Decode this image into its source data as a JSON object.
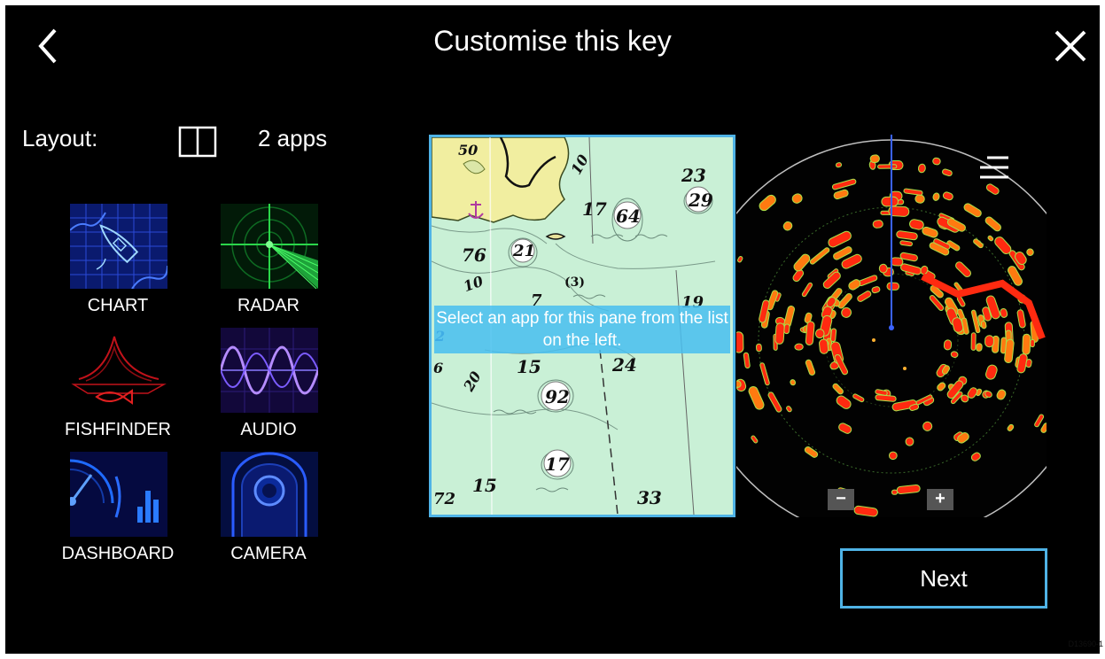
{
  "header": {
    "title": "Customise this key",
    "back_icon": "chevron-left-icon",
    "close_icon": "close-icon"
  },
  "layout": {
    "label": "Layout:",
    "icon": "split-two-pane-icon",
    "count_label": "2 apps"
  },
  "apps": [
    {
      "id": "chart",
      "label": "CHART"
    },
    {
      "id": "radar",
      "label": "RADAR"
    },
    {
      "id": "fishfinder",
      "label": "FISHFINDER"
    },
    {
      "id": "audio",
      "label": "AUDIO"
    },
    {
      "id": "dashboard",
      "label": "DASHBOARD"
    },
    {
      "id": "camera",
      "label": "CAMERA"
    }
  ],
  "preview": {
    "left_pane_hint": "Select an app for this pane from the list on the left.",
    "chart_depths": [
      "50",
      "10",
      "23",
      "17",
      "64",
      "29",
      "76",
      "21",
      "10",
      "(3)",
      "7",
      "19",
      "2",
      "6",
      "20",
      "15",
      "24",
      "92",
      "17",
      "72",
      "15",
      "33"
    ],
    "zoom_out_label": "−",
    "zoom_in_label": "+",
    "menu_icon": "hamburger-menu-icon"
  },
  "footer": {
    "next_label": "Next",
    "document_id": "D13690-1"
  },
  "colors": {
    "background": "#000000",
    "accent": "#4fb3e6",
    "hint_bg": "#48bef0",
    "chart_water": "#c9f0d6",
    "chart_land": "#f1eea0",
    "radar_red": "#ff2a10"
  }
}
